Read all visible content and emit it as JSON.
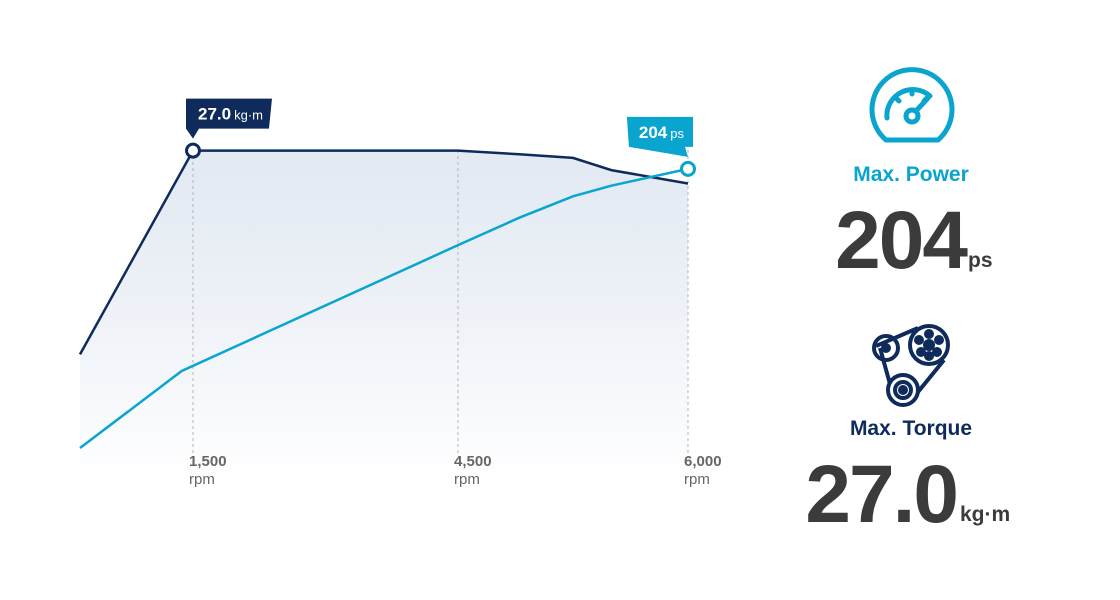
{
  "chart_data": {
    "type": "line",
    "x_unit": "rpm",
    "xlim": [
      1000,
      6000
    ],
    "xticks": [
      {
        "value": 1500,
        "label": "1,500"
      },
      {
        "value": 4500,
        "label": "4,500"
      },
      {
        "value": 6000,
        "label": "6,000"
      }
    ],
    "ylim": [
      0,
      30
    ],
    "y2lim": [
      0,
      240
    ],
    "series": [
      {
        "name": "Max. Torque",
        "color": "#0f2b5b",
        "unit": "kg·m",
        "peak_label": "27.0",
        "x": [
          1000,
          1500,
          4500,
          4900,
          5250,
          5500,
          6000
        ],
        "values": [
          10.3,
          27,
          27,
          26.7,
          26.4,
          25.4,
          24.3
        ]
      },
      {
        "name": "Max. Power",
        "color": "#0aa5cf",
        "unit": "ps",
        "peak_label": "204",
        "axis": "y2",
        "x": [
          1000,
          1450,
          4500,
          4900,
          5250,
          5500,
          6000
        ],
        "values": [
          21,
          71.5,
          154,
          172,
          186,
          193,
          204
        ]
      }
    ]
  }
}
